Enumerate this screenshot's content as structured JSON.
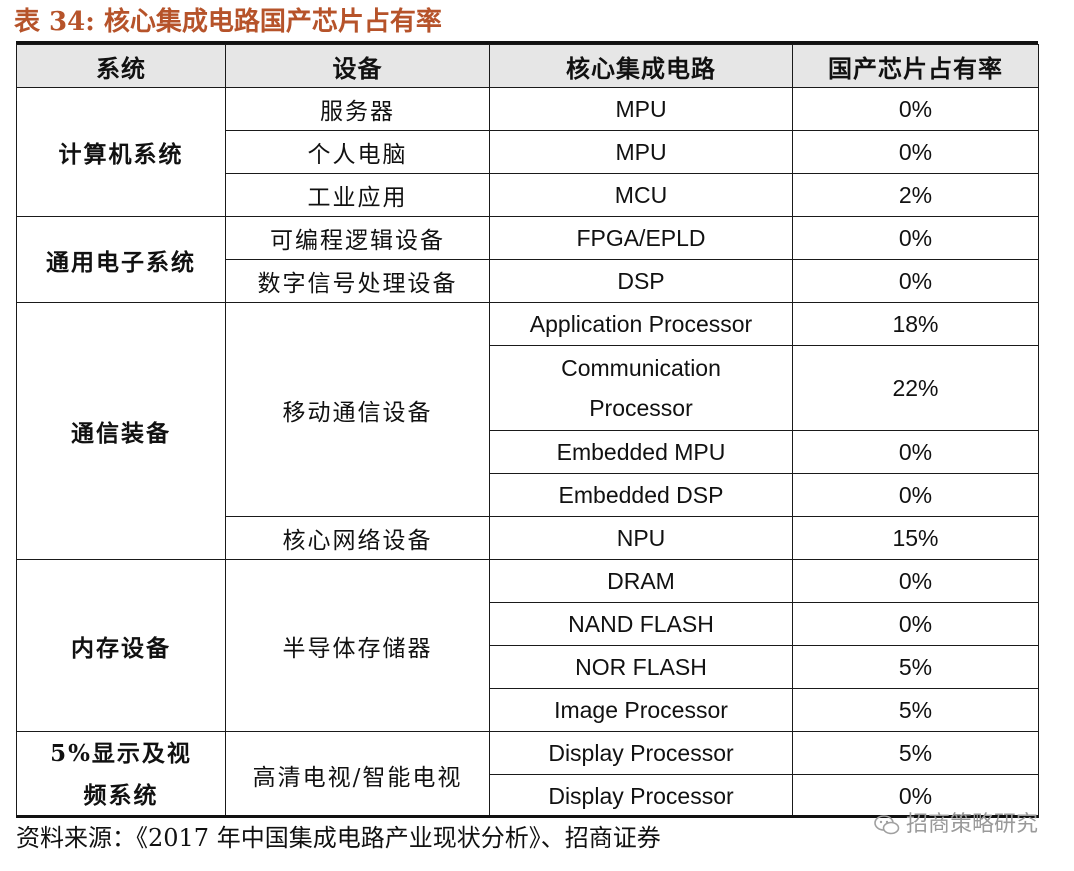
{
  "title": "表 34: 核心集成电路国产芯片占有率",
  "headers": [
    "系统",
    "设备",
    "核心集成电路",
    "国产芯片占有率"
  ],
  "groups": [
    {
      "system": "计算机系统",
      "devices": [
        {
          "name": "服务器",
          "rows": [
            {
              "ic": "MPU",
              "share": "0%"
            }
          ]
        },
        {
          "name": "个人电脑",
          "rows": [
            {
              "ic": "MPU",
              "share": "0%"
            }
          ]
        },
        {
          "name": "工业应用",
          "rows": [
            {
              "ic": "MCU",
              "share": "2%"
            }
          ]
        }
      ]
    },
    {
      "system": "通用电子系统",
      "devices": [
        {
          "name": "可编程逻辑设备",
          "rows": [
            {
              "ic": "FPGA/EPLD",
              "share": "0%"
            }
          ]
        },
        {
          "name": "数字信号处理设备",
          "rows": [
            {
              "ic": "DSP",
              "share": "0%"
            }
          ]
        }
      ]
    },
    {
      "system": "通信装备",
      "devices": [
        {
          "name": "移动通信设备",
          "rows": [
            {
              "ic": "Application Processor",
              "share": "18%"
            },
            {
              "ic": "Communication Processor",
              "share": "22%"
            },
            {
              "ic": "Embedded MPU",
              "share": "0%"
            },
            {
              "ic": "Embedded DSP",
              "share": "0%"
            }
          ]
        },
        {
          "name": "核心网络设备",
          "rows": [
            {
              "ic": "NPU",
              "share": "15%"
            }
          ]
        }
      ]
    },
    {
      "system": "内存设备",
      "devices": [
        {
          "name": "半导体存储器",
          "rows": [
            {
              "ic": "DRAM",
              "share": "0%"
            },
            {
              "ic": "NAND FLASH",
              "share": "0%"
            },
            {
              "ic": "NOR FLASH",
              "share": "5%"
            },
            {
              "ic": "Image Processor",
              "share": "5%"
            }
          ]
        }
      ]
    },
    {
      "system": "5%显示及视频系统",
      "devices": [
        {
          "name": "高清电视/智能电视",
          "rows": [
            {
              "ic": "Display Processor",
              "share": "5%"
            },
            {
              "ic": "Display Processor",
              "share": "0%"
            }
          ]
        }
      ]
    }
  ],
  "source": "资料来源：《2017 年中国集成电路产业现状分析》、招商证券",
  "watermark": {
    "text": "招商策略研究",
    "icon": "wechat-icon"
  },
  "colors": {
    "title": "#b6532a",
    "header_bg": "#e6e6e6",
    "watermark": "#9a9a9a"
  }
}
